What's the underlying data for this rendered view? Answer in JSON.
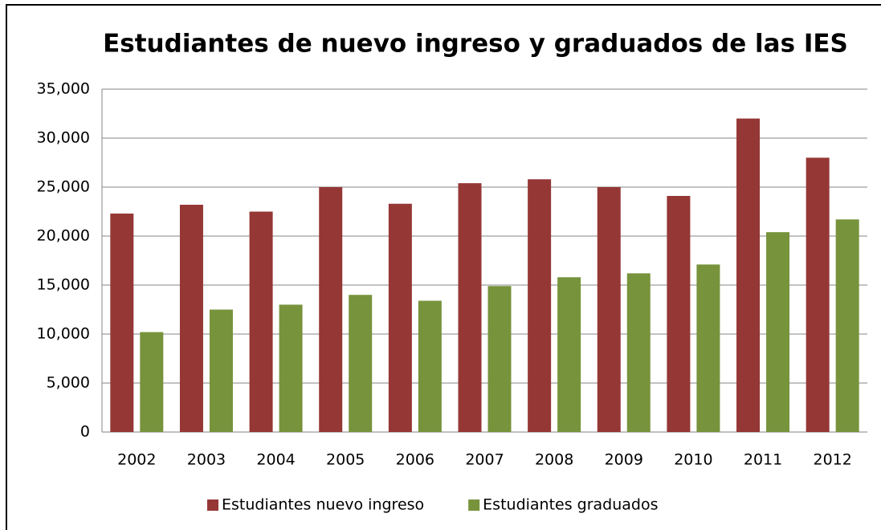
{
  "chart_data": {
    "type": "bar",
    "title": "Estudiantes de nuevo ingreso y graduados de las IES",
    "categories": [
      "2002",
      "2003",
      "2004",
      "2005",
      "2006",
      "2007",
      "2008",
      "2009",
      "2010",
      "2011",
      "2012"
    ],
    "series": [
      {
        "name": "Estudiantes nuevo ingreso",
        "color": "#953735",
        "values": [
          22300,
          23200,
          22500,
          25000,
          23300,
          25400,
          25800,
          25000,
          24100,
          32000,
          28000
        ]
      },
      {
        "name": "Estudiantes graduados",
        "color": "#77933c",
        "values": [
          10200,
          12500,
          13000,
          14000,
          13400,
          14900,
          15800,
          16200,
          17100,
          20400,
          21700
        ]
      }
    ],
    "ylim": [
      0,
      35000
    ],
    "yticks": [
      0,
      {
        "value": 5000,
        "label": "5,000"
      },
      {
        "value": 10000,
        "label": "10,000"
      },
      {
        "value": 15000,
        "label": "15,000"
      },
      {
        "value": 20000,
        "label": "20,000"
      },
      {
        "value": 25000,
        "label": "25,000"
      },
      {
        "value": 30000,
        "label": "30,000"
      },
      {
        "value": 35000,
        "label": "35,000"
      }
    ],
    "grid": true,
    "legend": "bottom"
  }
}
